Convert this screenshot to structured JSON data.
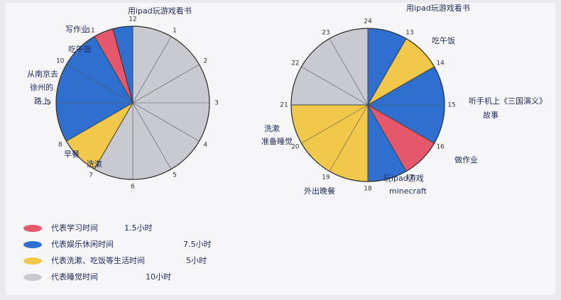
{
  "chart_data": [
    {
      "type": "pie",
      "values": [
        7,
        1,
        3,
        0.5,
        0.5
      ],
      "colors": [
        "#c9c9d2",
        "#f2c84b",
        "#2f6fd0",
        "#e5576a",
        "#2f6fd0"
      ],
      "hour_labels": [
        12,
        1,
        2,
        3,
        4,
        5,
        6,
        7,
        8,
        9,
        10,
        11
      ],
      "annotations": [
        "用ipad玩游戏看书",
        "写作业",
        "吃午饭",
        "从南京去",
        "徐州的",
        "路上",
        "早餐",
        "洗漱"
      ]
    },
    {
      "type": "pie",
      "values": [
        1,
        1,
        2,
        1,
        1,
        3,
        3
      ],
      "colors": [
        "#2f6fd0",
        "#f2c84b",
        "#2f6fd0",
        "#e5576a",
        "#2f6fd0",
        "#f2c84b",
        "#c9c9d2"
      ],
      "hour_labels": [
        24,
        13,
        14,
        15,
        16,
        17,
        18,
        19,
        20,
        21,
        22,
        23
      ],
      "annotations": [
        "用ipad玩游戏看书",
        "吃午饭",
        "听手机上《三国演义》",
        "故事",
        "做作业",
        "玩ipad游戏",
        "minecraft",
        "外出晚餐",
        "洗漱",
        "准备睡觉"
      ]
    }
  ],
  "legend": [
    {
      "label": "代表学习时间",
      "amount": "1.5小时",
      "color": "#e5576a"
    },
    {
      "label": "代表娱乐休闲时间",
      "amount": "7.5小时",
      "color": "#2f6fd0"
    },
    {
      "label": "代表洗漱、吃饭等生活时间",
      "amount": "5小时",
      "color": "#f2c84b"
    },
    {
      "label": "代表睡觉时间",
      "amount": "10小时",
      "color": "#c9c9d2"
    }
  ]
}
